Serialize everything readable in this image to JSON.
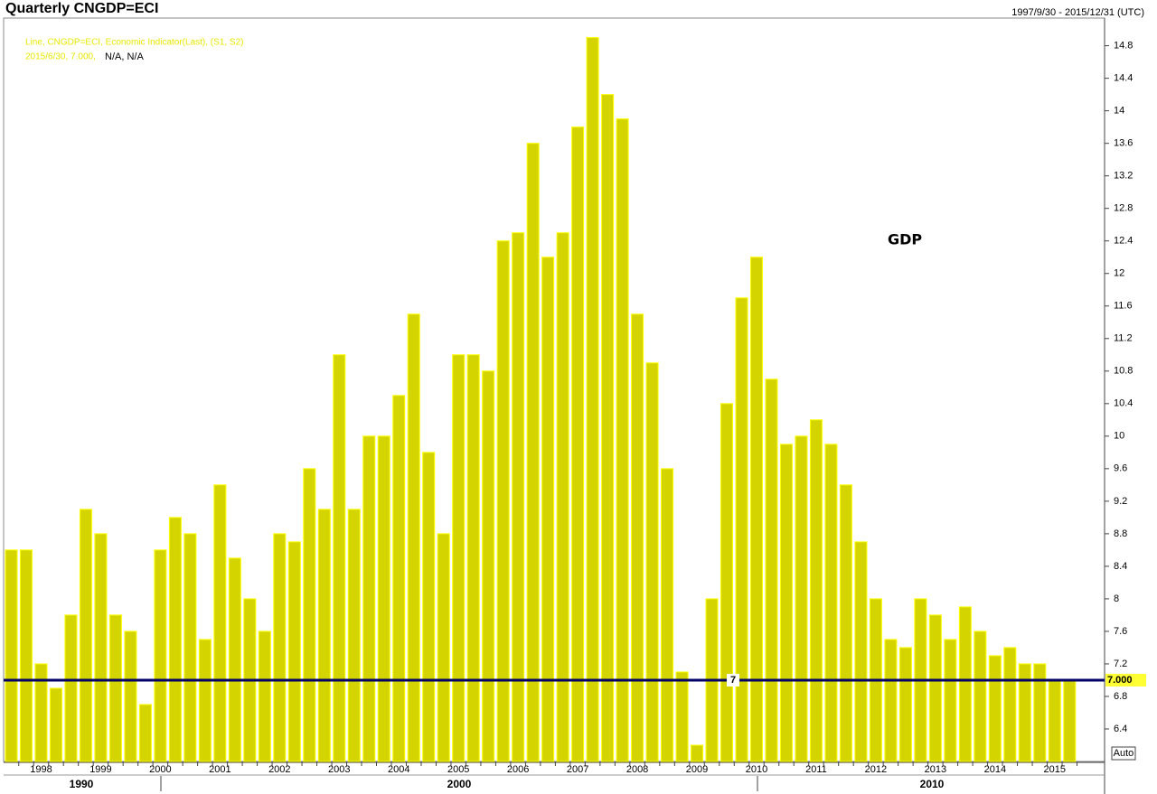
{
  "chart_data": {
    "type": "bar",
    "title": "Quarterly CNGDP=ECI",
    "date_range": "1997/9/30 - 2015/12/31 (UTC)",
    "legend_lines": [
      "Line, CNGDP=ECI, Economic Indicator(Last), (S1, S2)",
      "2015/6/30, 7.000,",
      "N/A, N/A"
    ],
    "annotation": "GDP",
    "decade_labels": [
      "1990",
      "2000",
      "2010"
    ],
    "auto_button": "Auto",
    "color": "#d4d400",
    "edge_color": "#ffff00",
    "categories": [
      null,
      null,
      "1998",
      null,
      null,
      null,
      "1999",
      null,
      null,
      null,
      "2000",
      null,
      null,
      null,
      "2001",
      null,
      null,
      null,
      "2002",
      null,
      null,
      null,
      "2003",
      null,
      null,
      null,
      "2004",
      null,
      null,
      null,
      "2005",
      null,
      null,
      null,
      "2006",
      null,
      null,
      null,
      "2007",
      null,
      null,
      null,
      "2008",
      null,
      null,
      null,
      "2009",
      null,
      null,
      null,
      "2010",
      null,
      null,
      null,
      "2011",
      null,
      null,
      null,
      "2012",
      null,
      null,
      null,
      "2013",
      null,
      null,
      null,
      "2014",
      null,
      null,
      null,
      "2015",
      null
    ],
    "values": [
      8.6,
      8.6,
      7.2,
      6.9,
      7.8,
      9.1,
      8.8,
      7.8,
      7.6,
      6.7,
      8.6,
      9.0,
      8.8,
      7.5,
      9.4,
      8.5,
      8.0,
      7.6,
      8.8,
      8.7,
      9.6,
      9.1,
      11.0,
      9.1,
      10.0,
      10.0,
      10.5,
      11.5,
      9.8,
      8.8,
      11.0,
      11.0,
      10.8,
      12.4,
      12.5,
      13.6,
      12.2,
      12.5,
      13.8,
      14.9,
      14.2,
      13.9,
      11.5,
      10.9,
      9.6,
      7.1,
      6.2,
      8.0,
      10.4,
      11.7,
      12.2,
      10.7,
      9.9,
      10.0,
      10.2,
      9.9,
      9.4,
      8.7,
      8.0,
      7.5,
      7.4,
      8.0,
      7.8,
      7.5,
      7.9,
      7.6,
      7.3,
      7.4,
      7.2,
      7.2,
      7.0,
      7.0
    ],
    "ylim": [
      6.0,
      15.14
    ],
    "yticks": [
      6.4,
      6.8,
      7.2,
      7.6,
      8,
      8.4,
      8.8,
      9.2,
      9.6,
      10,
      10.4,
      10.8,
      11.2,
      11.6,
      12,
      12.4,
      12.8,
      13.2,
      13.6,
      14,
      14.4,
      14.8
    ],
    "reference_line": {
      "value": 7,
      "axis_label": "7.000",
      "color": "#000066"
    }
  }
}
